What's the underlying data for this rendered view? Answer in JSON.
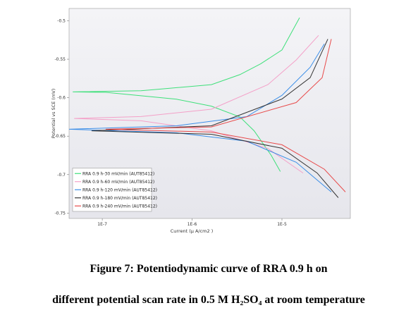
{
  "chart_data": {
    "type": "line",
    "xscale": "log",
    "xlabel": "Current (µ A/cm2 )",
    "ylabel": "Potential vs SCE (mV)",
    "xlim": [
      4.27e-08,
      5.77e-05
    ],
    "ylim": [
      -0.757,
      -0.484
    ],
    "xticks": [
      {
        "value": 1e-07,
        "label": "1E-7"
      },
      {
        "value": 1e-06,
        "label": "1E-6"
      },
      {
        "value": 1e-05,
        "label": "1E-5"
      }
    ],
    "yticks": [
      -0.5,
      -0.55,
      -0.6,
      -0.65,
      -0.7,
      -0.75
    ],
    "legend": "lower left",
    "series": [
      {
        "name": "RRA 0.9 h-30 mV/min (AUT85412)",
        "color": "#3ee07a",
        "x": [
          9.6e-06,
          7.6e-06,
          4.9e-06,
          3.4e-06,
          1.64e-06,
          6.7e-07,
          1.09e-07,
          4.69e-08,
          2.7e-07,
          1.64e-06,
          3.4e-06,
          5.8e-06,
          1e-05,
          1.57e-05
        ],
        "values": [
          -0.696,
          -0.675,
          -0.643,
          -0.625,
          -0.611,
          -0.602,
          -0.593,
          -0.5925,
          -0.591,
          -0.583,
          -0.57,
          -0.556,
          -0.538,
          -0.496
        ]
      },
      {
        "name": "RRA 0.9 h-60 mV/min (AUT85412)",
        "color": "#f4a0c8",
        "x": [
          1.72e-05,
          6.97e-06,
          1.64e-06,
          2.7e-07,
          4.86e-08,
          2.7e-07,
          1.64e-06,
          6.97e-06,
          1.44e-05,
          2.56e-05
        ],
        "values": [
          -0.698,
          -0.666,
          -0.643,
          -0.63,
          -0.627,
          -0.6245,
          -0.615,
          -0.583,
          -0.551,
          -0.519
        ]
      },
      {
        "name": "RRA 0.9 h-120 mV/min (AUT85412)",
        "color": "#3b8ee8",
        "x": [
          3.54e-05,
          1.44e-05,
          4.05e-06,
          6.7e-07,
          4.27e-08,
          6.7e-07,
          4.05e-06,
          1e-05,
          2.06e-05,
          2.96e-05
        ],
        "values": [
          -0.7226,
          -0.684,
          -0.6566,
          -0.6456,
          -0.641,
          -0.6365,
          -0.6246,
          -0.597,
          -0.5605,
          -0.53
        ]
      },
      {
        "name": "RRA 0.9 h-180 mV/min (AUT85412)",
        "color": "#333333",
        "x": [
          4.24e-05,
          2.47e-05,
          1e-05,
          1.64e-06,
          7.6e-08,
          1.64e-06,
          1e-05,
          2.06e-05,
          3.24e-05
        ],
        "values": [
          -0.73,
          -0.698,
          -0.6658,
          -0.6475,
          -0.643,
          -0.6365,
          -0.6017,
          -0.574,
          -0.5238
        ]
      },
      {
        "name": "RRA 0.9 h-240 mV/min (AUT85412)",
        "color": "#e84a4a",
        "x": [
          5.08e-05,
          2.96e-05,
          1e-05,
          1.64e-06,
          1.09e-07,
          1.64e-06,
          1.44e-05,
          2.8e-05,
          3.54e-05
        ],
        "values": [
          -0.7226,
          -0.693,
          -0.6612,
          -0.6447,
          -0.641,
          -0.638,
          -0.6063,
          -0.574,
          -0.5238
        ]
      }
    ]
  },
  "caption": {
    "line1": "Figure 7: Potentiodynamic curve of RRA 0.9 h on",
    "line2": "different potential scan rate in 0.5 M H₂SO₄ at room temperature"
  }
}
